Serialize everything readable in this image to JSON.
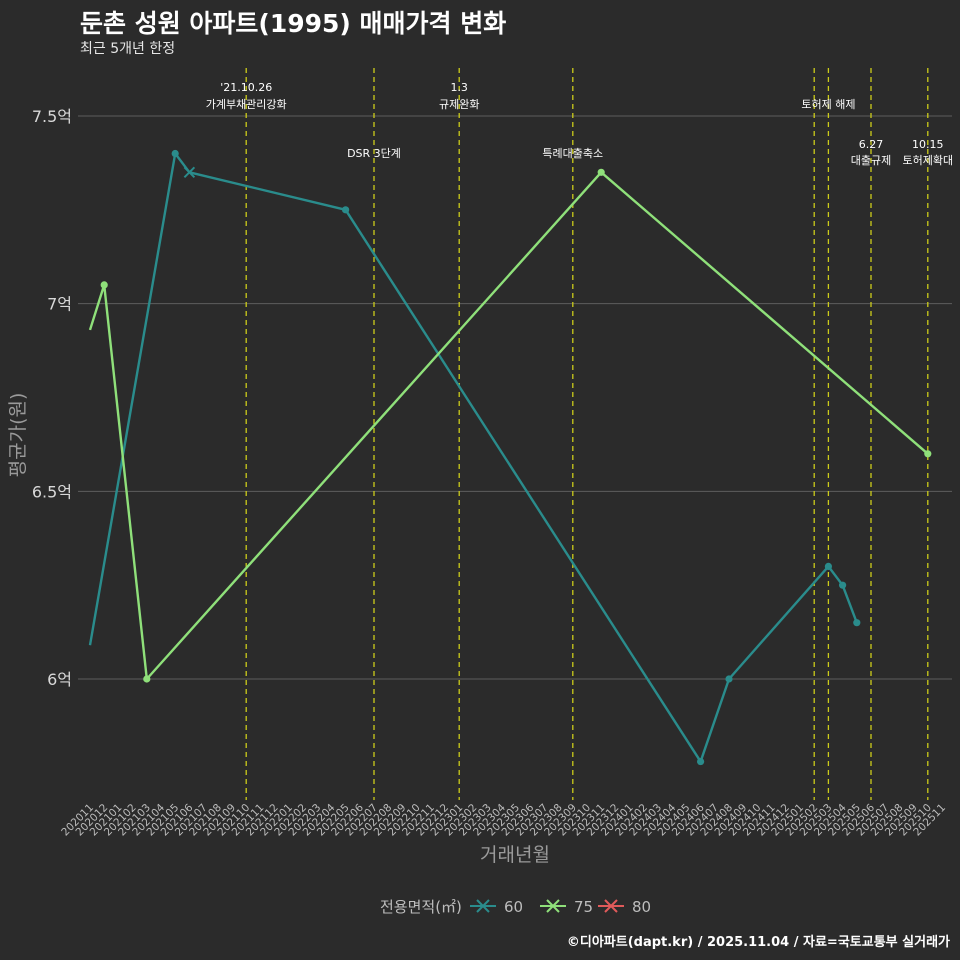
{
  "chart_data": {
    "type": "line",
    "title": "둔촌 성원 아파트(1995) 매매가격 변화",
    "subtitle": "최근 5개년 한정",
    "xlabel": "거래년월",
    "ylabel": "평균가(원)",
    "ylim": [
      5.7,
      7.6
    ],
    "yticks": [
      {
        "value": 6.0,
        "label": "6억"
      },
      {
        "value": 6.5,
        "label": "6.5억"
      },
      {
        "value": 7.0,
        "label": "7억"
      },
      {
        "value": 7.5,
        "label": "7.5억"
      }
    ],
    "x_start": "2020-11",
    "x_end": "2025-11",
    "xticks": [
      "202011",
      "202012",
      "202101",
      "202102",
      "202103",
      "202104",
      "202105",
      "202106",
      "202107",
      "202108",
      "202109",
      "202110",
      "202111",
      "202112",
      "202201",
      "202202",
      "202203",
      "202204",
      "202205",
      "202206",
      "202207",
      "202208",
      "202209",
      "202210",
      "202211",
      "202212",
      "202301",
      "202302",
      "202303",
      "202304",
      "202305",
      "202306",
      "202307",
      "202308",
      "202309",
      "202310",
      "202311",
      "202312",
      "202401",
      "202402",
      "202403",
      "202404",
      "202405",
      "202406",
      "202407",
      "202408",
      "202409",
      "202410",
      "202411",
      "202412",
      "202501",
      "202502",
      "202503",
      "202504",
      "202505",
      "202506",
      "202507",
      "202508",
      "202509",
      "202510",
      "202511"
    ],
    "series": [
      {
        "name": "60",
        "color": "#2a8c8c",
        "points": [
          {
            "x": "2020-11",
            "y": 6.09,
            "marker": "none"
          },
          {
            "x": "2021-05",
            "y": 7.4,
            "marker": "dot"
          },
          {
            "x": "2021-06",
            "y": 7.35,
            "marker": "x"
          },
          {
            "x": "2022-05",
            "y": 7.25,
            "marker": "dot"
          },
          {
            "x": "2024-06",
            "y": 5.78,
            "marker": "dot"
          },
          {
            "x": "2024-08",
            "y": 6.0,
            "marker": "dot"
          },
          {
            "x": "2025-03",
            "y": 6.3,
            "marker": "dot"
          },
          {
            "x": "2025-04",
            "y": 6.25,
            "marker": "dot"
          },
          {
            "x": "2025-05",
            "y": 6.15,
            "marker": "dot"
          }
        ]
      },
      {
        "name": "75",
        "color": "#8fe07a",
        "points": [
          {
            "x": "2020-11",
            "y": 6.93,
            "marker": "none"
          },
          {
            "x": "2020-12",
            "y": 7.05,
            "marker": "dot"
          },
          {
            "x": "2021-03",
            "y": 6.0,
            "marker": "dot"
          },
          {
            "x": "2023-11",
            "y": 7.35,
            "marker": "dot"
          },
          {
            "x": "2025-10",
            "y": 6.6,
            "marker": "dot"
          }
        ]
      },
      {
        "name": "80",
        "color": "#e05a5a",
        "points": []
      }
    ],
    "events": [
      {
        "x": "2021-10",
        "line1": "'21.10.26",
        "line2": "가계부채관리강화",
        "level": "top"
      },
      {
        "x": "2022-07",
        "line1": "",
        "line2": "DSR 3단계",
        "level": "mid"
      },
      {
        "x": "2023-01",
        "line1": "1.3",
        "line2": "규제완화",
        "level": "top"
      },
      {
        "x": "2023-09",
        "line1": "",
        "line2": "특례대출축소",
        "level": "mid"
      },
      {
        "x": "2025-02",
        "line1": "",
        "line2": "",
        "level": "none"
      },
      {
        "x": "2025-03",
        "line1": "",
        "line2": "토허제 해제",
        "level": "top"
      },
      {
        "x": "2025-06",
        "line1": "6.27",
        "line2": "대출규제",
        "level": "low"
      },
      {
        "x": "2025-10",
        "line1": "10.15",
        "line2": "토허제확대",
        "level": "low"
      }
    ],
    "legend": {
      "title": "전용면적(㎡)",
      "position": "bottom"
    },
    "grid": true
  },
  "footer": "©디아파트(dapt.kr) / 2025.11.04 / 자료=국토교통부 실거래가"
}
